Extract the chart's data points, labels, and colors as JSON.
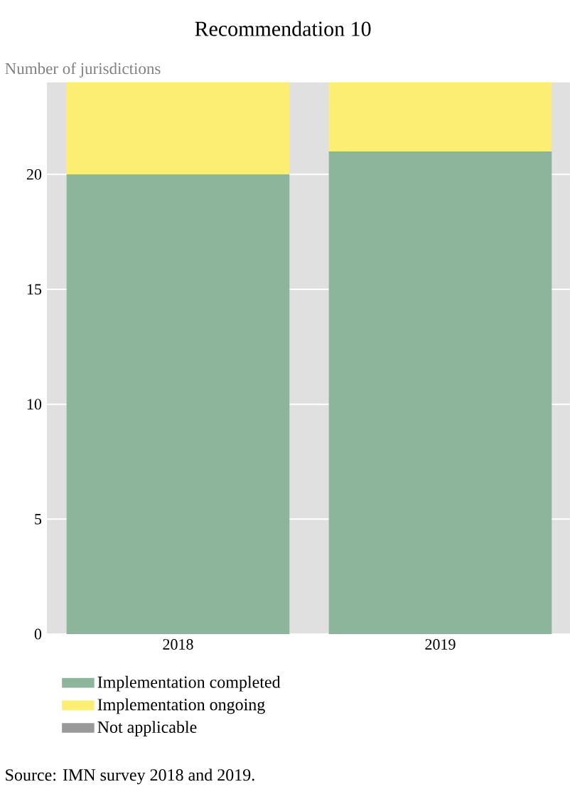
{
  "chart_data": {
    "type": "bar",
    "title": "Recommendation 10",
    "ylabel": "Number of jurisdictions",
    "categories": [
      "2018",
      "2019"
    ],
    "stacked": true,
    "series": [
      {
        "name": "Implementation completed",
        "color": "#8db59c",
        "values": [
          20,
          21
        ]
      },
      {
        "name": "Implementation ongoing",
        "color": "#fcee73",
        "values": [
          4,
          3
        ]
      },
      {
        "name": "Not applicable",
        "color": "#999999",
        "values": [
          0,
          0
        ]
      }
    ],
    "ylim": [
      0,
      24
    ],
    "yticks": [
      0,
      5,
      10,
      15,
      20
    ],
    "grid": "y",
    "legend": "bottom",
    "annotations": [
      "Source: IMN survey 2018 and 2019."
    ]
  }
}
